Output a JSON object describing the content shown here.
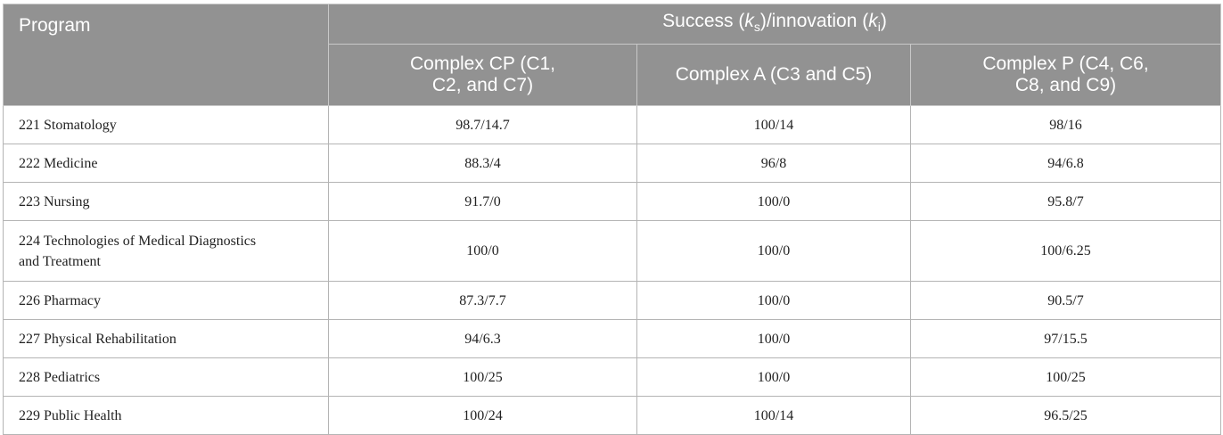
{
  "header": {
    "program_label": "Program",
    "group_label_prefix": "Success (",
    "group_k1": "k",
    "group_s": "s",
    "group_mid": ")/innovation (",
    "group_k2": "k",
    "group_i": "i",
    "group_suffix": ")",
    "columns": [
      {
        "line1": "Complex CP (C1,",
        "line2": "C2, and C7)"
      },
      {
        "line1": "Complex A (C3 and C5)",
        "line2": ""
      },
      {
        "line1": "Complex P (C4, C6,",
        "line2": "C8, and C9)"
      }
    ]
  },
  "rows": [
    {
      "program": "221 Stomatology",
      "program_line2": "",
      "cp": "98.7/14.7",
      "a": "100/14",
      "p": "98/16"
    },
    {
      "program": "222 Medicine",
      "program_line2": "",
      "cp": "88.3/4",
      "a": "96/8",
      "p": "94/6.8"
    },
    {
      "program": "223 Nursing",
      "program_line2": "",
      "cp": "91.7/0",
      "a": "100/0",
      "p": "95.8/7"
    },
    {
      "program": "224 Technologies of Medical Diagnostics",
      "program_line2": "and Treatment",
      "cp": "100/0",
      "a": "100/0",
      "p": "100/6.25"
    },
    {
      "program": "226 Pharmacy",
      "program_line2": "",
      "cp": "87.3/7.7",
      "a": "100/0",
      "p": "90.5/7"
    },
    {
      "program": "227 Physical Rehabilitation",
      "program_line2": "",
      "cp": "94/6.3",
      "a": "100/0",
      "p": "97/15.5"
    },
    {
      "program": "228 Pediatrics",
      "program_line2": "",
      "cp": "100/25",
      "a": "100/0",
      "p": "100/25"
    },
    {
      "program": "229 Public Health",
      "program_line2": "",
      "cp": "100/24",
      "a": "100/14",
      "p": "96.5/25"
    }
  ]
}
